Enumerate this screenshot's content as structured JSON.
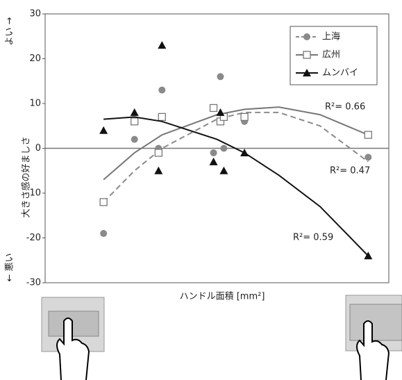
{
  "chart_data": {
    "type": "scatter",
    "y_label": "大きさ感の好ましさ",
    "y_top_label": "よい →",
    "y_bottom_label": "← 悪い",
    "x_label": "ハンドル面積 [mm²]",
    "ylim": [
      -30,
      30
    ],
    "yticks": [
      -30,
      -20,
      -10,
      0,
      10,
      20,
      30
    ],
    "xlim": [
      0,
      100
    ],
    "x": [
      17,
      26,
      33,
      34,
      49,
      51,
      52,
      58,
      94
    ],
    "fit_x": [
      17,
      26,
      34,
      50,
      58,
      68,
      80,
      94
    ],
    "series": [
      {
        "name": "上海",
        "color": "#8a8a8a",
        "marker": "circle",
        "dash": "dashed",
        "values": [
          -19,
          2,
          0,
          13,
          -1,
          16,
          0,
          6,
          -2
        ],
        "fit_values": [
          -12,
          -5,
          0,
          6.5,
          8,
          8,
          5,
          -3
        ]
      },
      {
        "name": "広州",
        "color": "#777777",
        "marker": "square",
        "dash": "solid",
        "values": [
          -12,
          6,
          -1,
          7,
          9,
          6,
          7,
          7,
          3
        ],
        "fit_values": [
          -7,
          -1,
          3,
          7.5,
          8.7,
          9.2,
          7.5,
          3
        ]
      },
      {
        "name": "ムンバイ",
        "color": "#111111",
        "marker": "triangle",
        "dash": "solid",
        "values": [
          4,
          8,
          -5,
          23,
          -3,
          8,
          -5,
          -1,
          -24
        ],
        "fit_values": [
          6.5,
          7,
          6,
          2,
          -1,
          -6,
          -13,
          -24
        ]
      }
    ],
    "annotations": [
      "R²= 0.66",
      "R²= 0.47",
      "R²= 0.59"
    ]
  }
}
